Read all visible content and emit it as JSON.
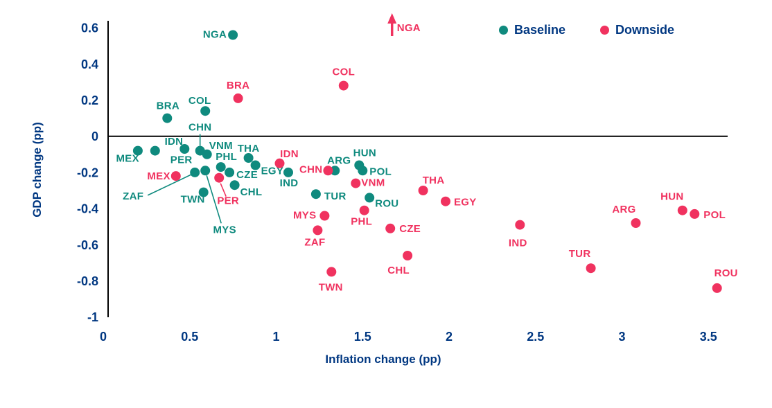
{
  "colors": {
    "baseline_teal": "#0F8A7E",
    "downside_pink": "#F0325F",
    "text_navy": "#003781",
    "axis_black": "#000000"
  },
  "chart_data": {
    "type": "scatter",
    "title": "",
    "xlabel": "Inflation change (pp)",
    "ylabel": "GDP change (pp)",
    "xlim": [
      0,
      3.72
    ],
    "ylim": [
      -1,
      0.62
    ],
    "x_ticks": [
      "0",
      "0.5",
      "1",
      "1.5",
      "2",
      "2.5",
      "3",
      "3.5"
    ],
    "y_ticks": [
      "0.6",
      "0.4",
      "0.2",
      "0",
      "-0.2",
      "-0.4",
      "-0.6",
      "-0.8",
      "-1"
    ],
    "grid": false,
    "legend_position": "top-right",
    "series": [
      {
        "name": "Baseline",
        "color": "#0F8A7E",
        "points": [
          {
            "c": "MEX",
            "x": 0.2,
            "y": -0.08,
            "a": "e",
            "dx": 2,
            "dy": 16
          },
          {
            "c": "PER",
            "x": 0.3,
            "y": -0.08,
            "a": "s",
            "dx": 22,
            "dy": 18
          },
          {
            "c": "IDN",
            "x": 0.47,
            "y": -0.07,
            "a": "e",
            "dx": -2,
            "dy": -6
          },
          {
            "c": "BRA",
            "x": 0.37,
            "y": 0.1,
            "a": "m",
            "dx": 1,
            "dy": -13
          },
          {
            "c": "COL",
            "x": 0.59,
            "y": 0.14,
            "a": "m",
            "dx": -8,
            "dy": -10
          },
          {
            "c": "NGA",
            "x": 0.75,
            "y": 0.56,
            "a": "e",
            "dx": -9,
            "dy": 4
          },
          {
            "c": "CHN",
            "x": 0.56,
            "y": -0.08,
            "a": "m",
            "dx": 0,
            "dy": -29,
            "leader": [
              0,
              -24,
              0,
              -7
            ]
          },
          {
            "c": "VNM",
            "x": 0.6,
            "y": -0.1,
            "a": "s",
            "dx": 3,
            "dy": -8
          },
          {
            "c": "PHL",
            "x": 0.68,
            "y": -0.17,
            "a": "m",
            "dx": 8,
            "dy": -10
          },
          {
            "c": "THA",
            "x": 0.84,
            "y": -0.12,
            "a": "m",
            "dx": 0,
            "dy": -9
          },
          {
            "c": "EGY",
            "x": 0.88,
            "y": -0.16,
            "a": "s",
            "dx": 8,
            "dy": 13
          },
          {
            "c": "CZE",
            "x": 0.73,
            "y": -0.2,
            "a": "s",
            "dx": 10,
            "dy": 8
          },
          {
            "c": "CHL",
            "x": 0.76,
            "y": -0.27,
            "a": "s",
            "dx": 8,
            "dy": 15
          },
          {
            "c": "ZAF",
            "x": 0.53,
            "y": -0.2,
            "a": "e",
            "dx": -74,
            "dy": 39,
            "leader": [
              -68,
              33,
              -5,
              3
            ]
          },
          {
            "c": "MYS",
            "x": 0.59,
            "y": -0.19,
            "a": "m",
            "dx": 28,
            "dy": 90,
            "leader": [
              23,
              76,
              2,
              7
            ]
          },
          {
            "c": "TWN",
            "x": 0.58,
            "y": -0.31,
            "a": "e",
            "dx": 2,
            "dy": 15
          },
          {
            "c": "IND",
            "x": 1.07,
            "y": -0.2,
            "a": "m",
            "dx": 1,
            "dy": 20
          },
          {
            "c": "TUR",
            "x": 1.23,
            "y": -0.32,
            "a": "s",
            "dx": 12,
            "dy": 8
          },
          {
            "c": "ARG",
            "x": 1.34,
            "y": -0.19,
            "a": "m",
            "dx": 6,
            "dy": -10
          },
          {
            "c": "HUN",
            "x": 1.48,
            "y": -0.16,
            "a": "m",
            "dx": 8,
            "dy": -13
          },
          {
            "c": "POL",
            "x": 1.5,
            "y": -0.19,
            "a": "s",
            "dx": 10,
            "dy": 6
          },
          {
            "c": "ROU",
            "x": 1.54,
            "y": -0.34,
            "a": "s",
            "dx": 8,
            "dy": 13
          }
        ]
      },
      {
        "name": "Downside",
        "color": "#F0325F",
        "points": [
          {
            "c": "MEX",
            "x": 0.42,
            "y": -0.22,
            "a": "e",
            "dx": -8,
            "dy": 5
          },
          {
            "c": "PER",
            "x": 0.67,
            "y": -0.23,
            "a": "m",
            "dx": 13,
            "dy": 38,
            "leader": [
              10,
              27,
              2,
              8
            ]
          },
          {
            "c": "BRA",
            "x": 0.78,
            "y": 0.21,
            "a": "m",
            "dx": 0,
            "dy": -14
          },
          {
            "c": "COL",
            "x": 1.39,
            "y": 0.28,
            "a": "m",
            "dx": 0,
            "dy": -15
          },
          {
            "c": "IDN",
            "x": 1.02,
            "y": -0.15,
            "a": "m",
            "dx": 14,
            "dy": -9
          },
          {
            "c": "CHN",
            "x": 1.3,
            "y": -0.19,
            "a": "e",
            "dx": -8,
            "dy": 3
          },
          {
            "c": "VNM",
            "x": 1.46,
            "y": -0.26,
            "a": "s",
            "dx": 8,
            "dy": 4
          },
          {
            "c": "PHL",
            "x": 1.51,
            "y": -0.41,
            "a": "m",
            "dx": -4,
            "dy": 21
          },
          {
            "c": "MYS",
            "x": 1.28,
            "y": -0.44,
            "a": "e",
            "dx": -12,
            "dy": 4
          },
          {
            "c": "ZAF",
            "x": 1.24,
            "y": -0.52,
            "a": "m",
            "dx": -4,
            "dy": 22
          },
          {
            "c": "CZE",
            "x": 1.66,
            "y": -0.51,
            "a": "s",
            "dx": 13,
            "dy": 5
          },
          {
            "c": "CHL",
            "x": 1.76,
            "y": -0.66,
            "a": "m",
            "dx": -13,
            "dy": 26
          },
          {
            "c": "TWN",
            "x": 1.32,
            "y": -0.75,
            "a": "m",
            "dx": -1,
            "dy": 27
          },
          {
            "c": "THA",
            "x": 1.85,
            "y": -0.3,
            "a": "m",
            "dx": 15,
            "dy": -10
          },
          {
            "c": "EGY",
            "x": 1.98,
            "y": -0.36,
            "a": "s",
            "dx": 12,
            "dy": 6
          },
          {
            "c": "IND",
            "x": 2.41,
            "y": -0.49,
            "a": "m",
            "dx": -3,
            "dy": 31
          },
          {
            "c": "TUR",
            "x": 2.82,
            "y": -0.73,
            "a": "m",
            "dx": -16,
            "dy": -16
          },
          {
            "c": "ARG",
            "x": 3.08,
            "y": -0.48,
            "a": "m",
            "dx": -17,
            "dy": -15
          },
          {
            "c": "HUN",
            "x": 3.35,
            "y": -0.41,
            "a": "m",
            "dx": -15,
            "dy": -15
          },
          {
            "c": "POL",
            "x": 3.42,
            "y": -0.43,
            "a": "s",
            "dx": 13,
            "dy": 6
          },
          {
            "c": "ROU",
            "x": 3.55,
            "y": -0.84,
            "a": "m",
            "dx": 13,
            "dy": -17
          }
        ]
      }
    ],
    "annotations": [
      {
        "series": "Downside",
        "label": "NGA",
        "x": 1.67,
        "type": "offscale-up"
      }
    ]
  }
}
